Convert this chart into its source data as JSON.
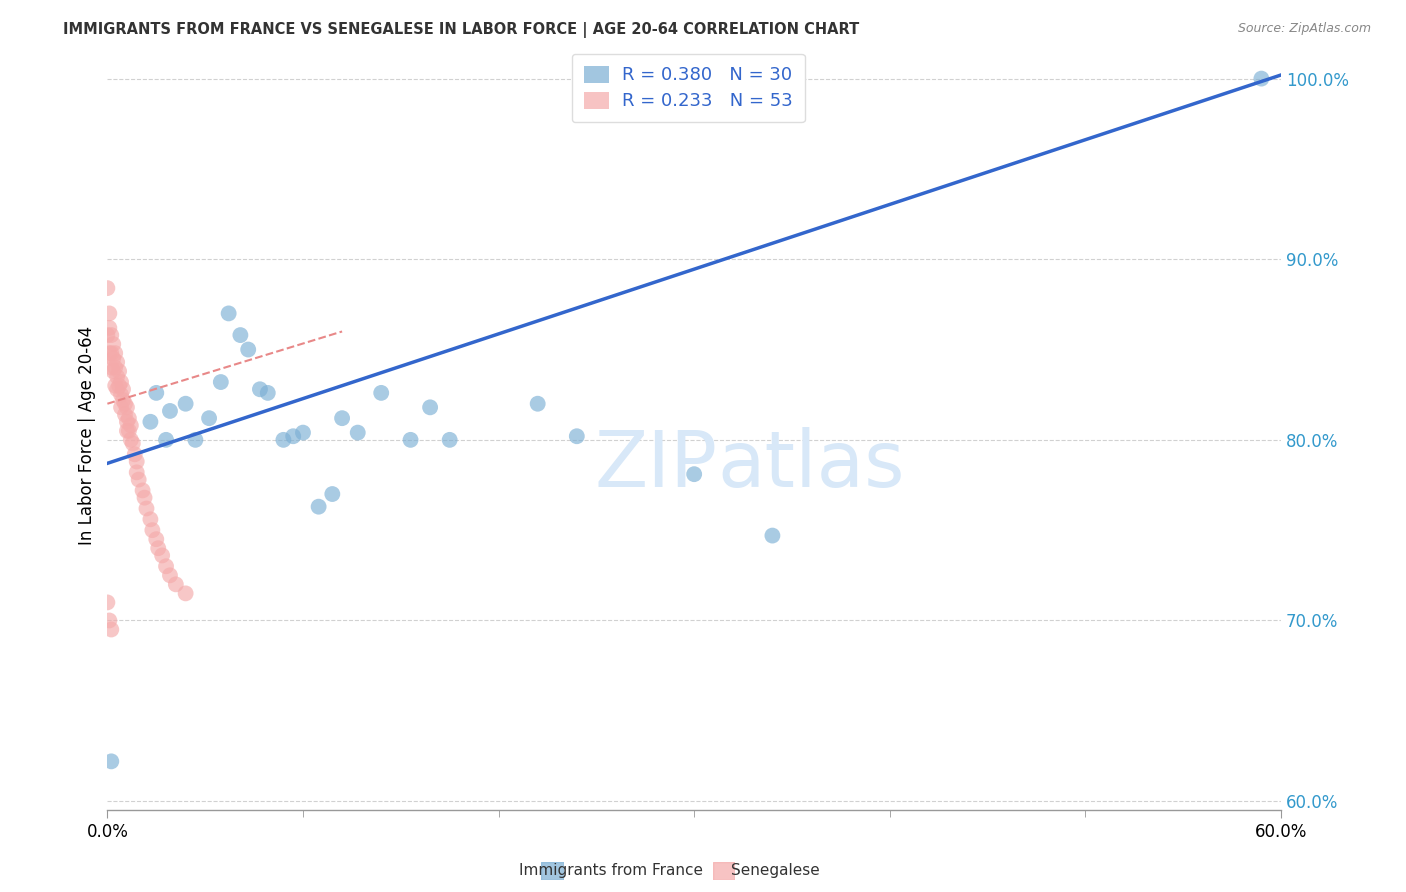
{
  "title": "IMMIGRANTS FROM FRANCE VS SENEGALESE IN LABOR FORCE | AGE 20-64 CORRELATION CHART",
  "source": "Source: ZipAtlas.com",
  "ylabel": "In Labor Force | Age 20-64",
  "xlim": [
    0.0,
    0.6
  ],
  "ylim": [
    0.595,
    1.01
  ],
  "xticks_major": [
    0.0,
    0.6
  ],
  "xticks_minor": [
    0.1,
    0.2,
    0.3,
    0.4,
    0.5
  ],
  "yticks": [
    0.6,
    0.7,
    0.8,
    0.9,
    1.0
  ],
  "legend_blue_r": "R = 0.380",
  "legend_blue_n": "N = 30",
  "legend_pink_r": "R = 0.233",
  "legend_pink_n": "N = 53",
  "blue_color": "#7BAFD4",
  "pink_color": "#F4AAAA",
  "trendline_blue_color": "#3366CC",
  "trendline_pink_color": "#E88888",
  "watermark_color": "#D8E8F8",
  "blue_trendline_x": [
    0.0,
    0.6
  ],
  "blue_trendline_y": [
    0.787,
    1.002
  ],
  "pink_trendline_x": [
    0.0,
    0.12
  ],
  "pink_trendline_y": [
    0.82,
    0.86
  ],
  "blue_scatter_x": [
    0.002,
    0.022,
    0.025,
    0.03,
    0.032,
    0.04,
    0.045,
    0.052,
    0.058,
    0.062,
    0.068,
    0.072,
    0.078,
    0.082,
    0.09,
    0.095,
    0.1,
    0.108,
    0.115,
    0.12,
    0.128,
    0.14,
    0.155,
    0.165,
    0.175,
    0.22,
    0.24,
    0.3,
    0.34,
    0.59
  ],
  "blue_scatter_y": [
    0.622,
    0.81,
    0.826,
    0.8,
    0.816,
    0.82,
    0.8,
    0.812,
    0.832,
    0.87,
    0.858,
    0.85,
    0.828,
    0.826,
    0.8,
    0.802,
    0.804,
    0.763,
    0.77,
    0.812,
    0.804,
    0.826,
    0.8,
    0.818,
    0.8,
    0.82,
    0.802,
    0.781,
    0.747,
    1.0
  ],
  "pink_scatter_x": [
    0.0,
    0.0,
    0.001,
    0.001,
    0.001,
    0.002,
    0.002,
    0.002,
    0.003,
    0.003,
    0.003,
    0.004,
    0.004,
    0.004,
    0.005,
    0.005,
    0.005,
    0.006,
    0.006,
    0.007,
    0.007,
    0.007,
    0.008,
    0.008,
    0.009,
    0.009,
    0.01,
    0.01,
    0.01,
    0.011,
    0.011,
    0.012,
    0.012,
    0.013,
    0.014,
    0.015,
    0.015,
    0.016,
    0.018,
    0.019,
    0.02,
    0.022,
    0.023,
    0.025,
    0.026,
    0.028,
    0.03,
    0.032,
    0.035,
    0.04,
    0.0,
    0.001,
    0.002
  ],
  "pink_scatter_y": [
    0.884,
    0.858,
    0.87,
    0.862,
    0.848,
    0.858,
    0.848,
    0.84,
    0.853,
    0.845,
    0.838,
    0.848,
    0.84,
    0.83,
    0.843,
    0.835,
    0.828,
    0.838,
    0.83,
    0.832,
    0.825,
    0.818,
    0.828,
    0.822,
    0.82,
    0.814,
    0.818,
    0.81,
    0.805,
    0.812,
    0.805,
    0.808,
    0.8,
    0.798,
    0.792,
    0.788,
    0.782,
    0.778,
    0.772,
    0.768,
    0.762,
    0.756,
    0.75,
    0.745,
    0.74,
    0.736,
    0.73,
    0.725,
    0.72,
    0.715,
    0.71,
    0.7,
    0.695
  ]
}
